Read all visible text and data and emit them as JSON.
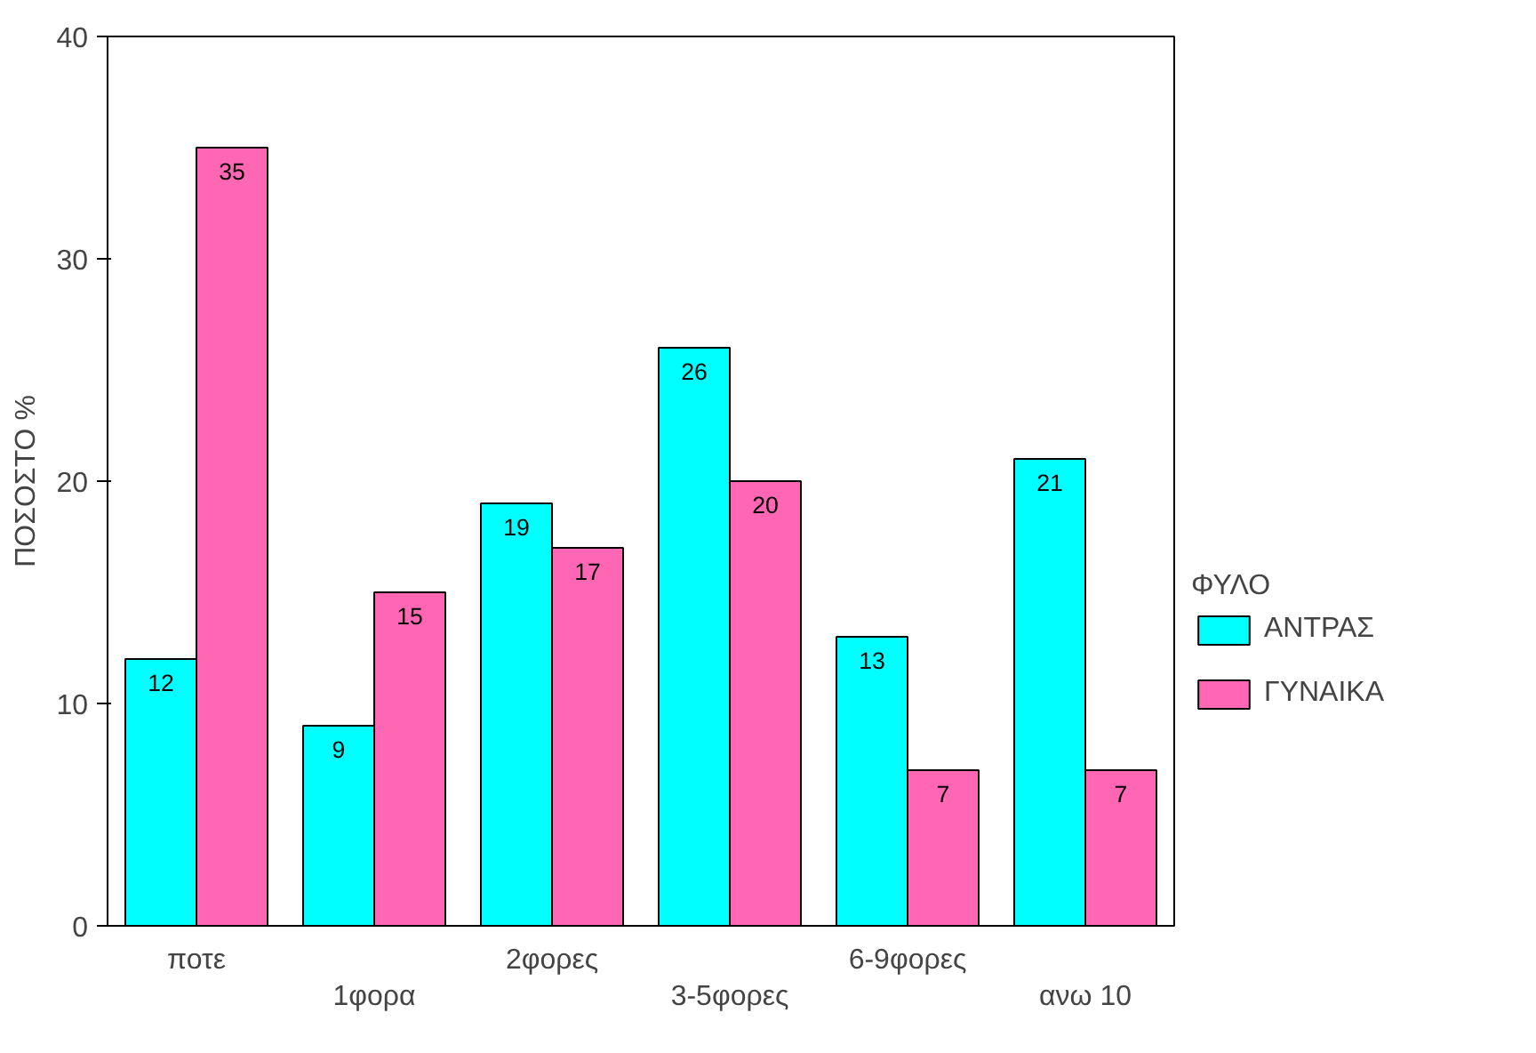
{
  "chart_data": {
    "type": "bar",
    "ylabel": "ΠΟΣΟΣΤΟ %",
    "legend_title": "ΦΥΛΟ",
    "categories": [
      "ποτε",
      "1φορα",
      "2φορες",
      "3-5φορες",
      "6-9φορες",
      "ανω 10"
    ],
    "series": [
      {
        "name": "ΑΝΤΡΑΣ",
        "color": "#00ffff",
        "values": [
          12,
          9,
          19,
          26,
          13,
          21
        ]
      },
      {
        "name": "ΓΥΝΑΙΚΑ",
        "color": "#ff66b3",
        "values": [
          35,
          15,
          17,
          20,
          7,
          7
        ]
      }
    ],
    "ylim": [
      0,
      40
    ],
    "yticks": [
      0,
      10,
      20,
      30,
      40
    ],
    "data_labels": true,
    "legend": "right",
    "grid": false
  }
}
